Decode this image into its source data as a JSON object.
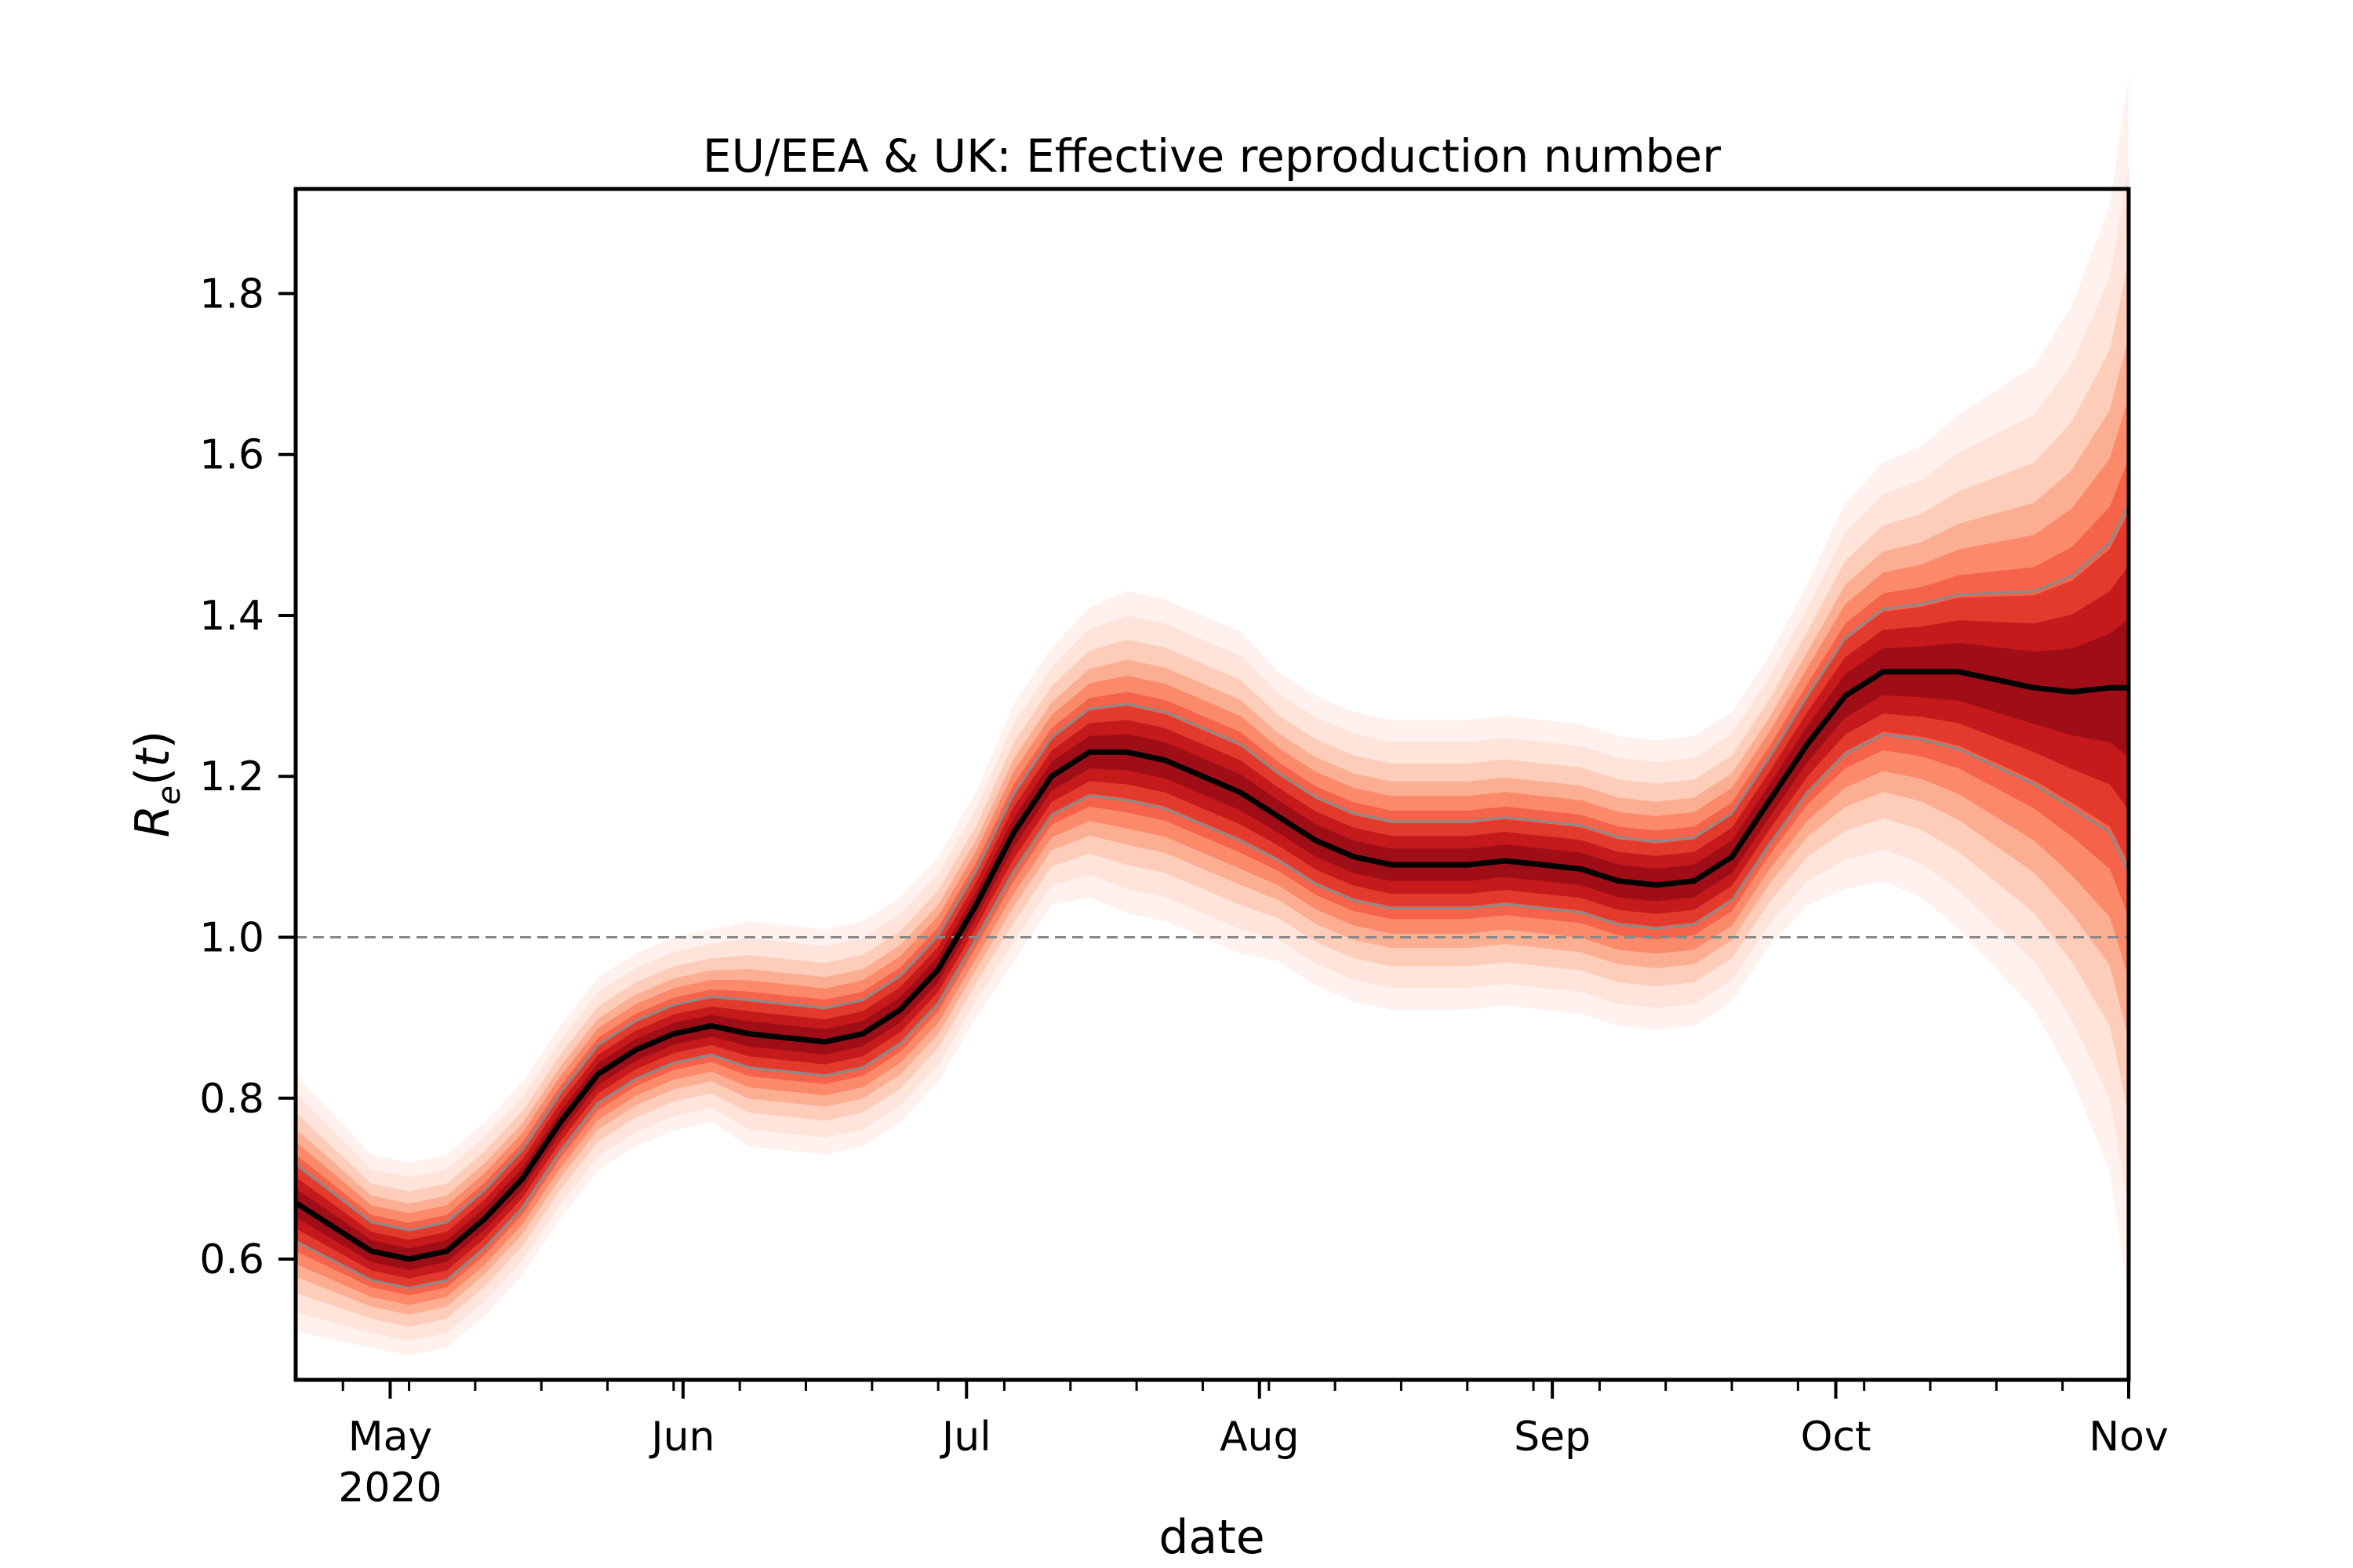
{
  "chart_data": {
    "type": "line",
    "title": "EU/EEA & UK: Effective reproduction number",
    "xlabel": "date",
    "ylabel_main": "R",
    "ylabel_sub": "e",
    "ylabel_paren_open": "(",
    "ylabel_var": "t",
    "ylabel_paren_close": ")",
    "xlim": [
      "2020-04-21",
      "2020-11-01"
    ],
    "ylim": [
      0.45,
      1.93
    ],
    "grid": false,
    "reference_line": {
      "y": 1.0,
      "style": "dashed",
      "color": "#888888"
    },
    "y_ticks": [
      {
        "value": 0.6,
        "label": "0.6"
      },
      {
        "value": 0.8,
        "label": "0.8"
      },
      {
        "value": 1.0,
        "label": "1.0"
      },
      {
        "value": 1.2,
        "label": "1.2"
      },
      {
        "value": 1.4,
        "label": "1.4"
      },
      {
        "value": 1.6,
        "label": "1.6"
      },
      {
        "value": 1.8,
        "label": "1.8"
      }
    ],
    "x_major_ticks": [
      {
        "date": "2020-05-01",
        "label": "May",
        "sublabel": "2020"
      },
      {
        "date": "2020-06-01",
        "label": "Jun"
      },
      {
        "date": "2020-07-01",
        "label": "Jul"
      },
      {
        "date": "2020-08-01",
        "label": "Aug"
      },
      {
        "date": "2020-09-01",
        "label": "Sep"
      },
      {
        "date": "2020-10-01",
        "label": "Oct"
      },
      {
        "date": "2020-11-01",
        "label": "Nov"
      }
    ],
    "x_minor_ticks": [
      "2020-04-26",
      "2020-05-03",
      "2020-05-10",
      "2020-05-17",
      "2020-05-24",
      "2020-05-31",
      "2020-06-07",
      "2020-06-14",
      "2020-06-21",
      "2020-06-28",
      "2020-07-05",
      "2020-07-12",
      "2020-07-19",
      "2020-07-26",
      "2020-08-02",
      "2020-08-09",
      "2020-08-16",
      "2020-08-23",
      "2020-08-30",
      "2020-09-06",
      "2020-09-13",
      "2020-09-20",
      "2020-09-27",
      "2020-10-04",
      "2020-10-11",
      "2020-10-18",
      "2020-10-25",
      "2020-11-01"
    ],
    "series": [
      {
        "role": "median",
        "color": "#000000",
        "points": [
          [
            "2020-04-21",
            0.67
          ],
          [
            "2020-04-25",
            0.64
          ],
          [
            "2020-04-29",
            0.61
          ],
          [
            "2020-05-03",
            0.6
          ],
          [
            "2020-05-07",
            0.61
          ],
          [
            "2020-05-11",
            0.65
          ],
          [
            "2020-05-15",
            0.7
          ],
          [
            "2020-05-19",
            0.77
          ],
          [
            "2020-05-23",
            0.83
          ],
          [
            "2020-05-27",
            0.86
          ],
          [
            "2020-05-31",
            0.88
          ],
          [
            "2020-06-04",
            0.89
          ],
          [
            "2020-06-08",
            0.88
          ],
          [
            "2020-06-12",
            0.875
          ],
          [
            "2020-06-16",
            0.87
          ],
          [
            "2020-06-20",
            0.88
          ],
          [
            "2020-06-24",
            0.91
          ],
          [
            "2020-06-28",
            0.96
          ],
          [
            "2020-07-02",
            1.04
          ],
          [
            "2020-07-06",
            1.13
          ],
          [
            "2020-07-10",
            1.2
          ],
          [
            "2020-07-14",
            1.23
          ],
          [
            "2020-07-18",
            1.23
          ],
          [
            "2020-07-22",
            1.22
          ],
          [
            "2020-07-26",
            1.2
          ],
          [
            "2020-07-30",
            1.18
          ],
          [
            "2020-08-03",
            1.15
          ],
          [
            "2020-08-07",
            1.12
          ],
          [
            "2020-08-11",
            1.1
          ],
          [
            "2020-08-15",
            1.09
          ],
          [
            "2020-08-19",
            1.09
          ],
          [
            "2020-08-23",
            1.09
          ],
          [
            "2020-08-27",
            1.095
          ],
          [
            "2020-08-31",
            1.09
          ],
          [
            "2020-09-04",
            1.085
          ],
          [
            "2020-09-08",
            1.07
          ],
          [
            "2020-09-12",
            1.065
          ],
          [
            "2020-09-16",
            1.07
          ],
          [
            "2020-09-20",
            1.1
          ],
          [
            "2020-09-24",
            1.17
          ],
          [
            "2020-09-28",
            1.24
          ],
          [
            "2020-10-02",
            1.3
          ],
          [
            "2020-10-06",
            1.33
          ],
          [
            "2020-10-10",
            1.33
          ],
          [
            "2020-10-14",
            1.33
          ],
          [
            "2020-10-18",
            1.32
          ],
          [
            "2020-10-22",
            1.31
          ],
          [
            "2020-10-26",
            1.305
          ],
          [
            "2020-10-30",
            1.31
          ],
          [
            "2020-11-01",
            1.31
          ]
        ],
        "uncertainty": [
          0.04,
          0.035,
          0.03,
          0.03,
          0.03,
          0.03,
          0.03,
          0.03,
          0.03,
          0.03,
          0.03,
          0.03,
          0.035,
          0.035,
          0.035,
          0.035,
          0.035,
          0.035,
          0.035,
          0.04,
          0.04,
          0.045,
          0.05,
          0.05,
          0.05,
          0.05,
          0.045,
          0.045,
          0.045,
          0.045,
          0.045,
          0.045,
          0.045,
          0.045,
          0.045,
          0.045,
          0.045,
          0.045,
          0.045,
          0.045,
          0.05,
          0.06,
          0.065,
          0.07,
          0.08,
          0.09,
          0.1,
          0.12,
          0.15,
          0.19
        ]
      }
    ]
  }
}
